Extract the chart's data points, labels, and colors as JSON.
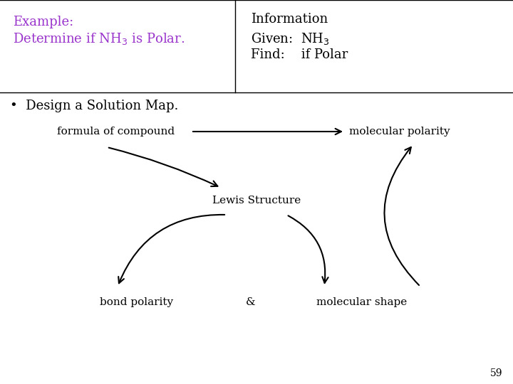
{
  "bg_color": "#ffffff",
  "top_left_color": "#9933cc",
  "info_color": "#000000",
  "bullet_text": "•  Design a Solution Map.",
  "formula_text": "formula of compound",
  "mol_polarity_text": "molecular polarity",
  "lewis_text": "Lewis Structure",
  "bond_text": "bond polarity",
  "ampersand": "&",
  "mol_shape_text": "molecular shape",
  "page_num": "59",
  "font_size_main": 13,
  "font_size_small": 11
}
